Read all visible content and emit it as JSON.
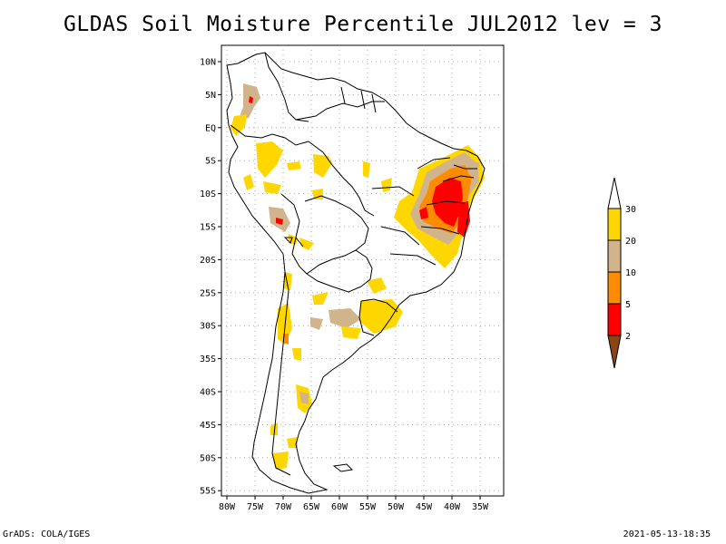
{
  "title": "GLDAS Soil Moisture Percentile JUL2012 lev = 3",
  "lat_labels": [
    "10N",
    "5N",
    "EQ",
    "5S",
    "10S",
    "15S",
    "20S",
    "25S",
    "30S",
    "35S",
    "40S",
    "45S",
    "50S",
    "55S"
  ],
  "lon_labels": [
    "80W",
    "75W",
    "70W",
    "65W",
    "60W",
    "55W",
    "50W",
    "45W",
    "40W",
    "35W"
  ],
  "colorbar": {
    "levels": [
      "30",
      "20",
      "10",
      "5",
      "2"
    ],
    "colors": {
      "above30": "#ffffff",
      "c20_30": "#ffd700",
      "c10_20": "#d2b48c",
      "c5_10": "#ff8c00",
      "c2_5": "#ff0000",
      "below2": "#8b4513"
    }
  },
  "footer": {
    "left": "GrADS: COLA/IGES",
    "right": "2021-05-13-18:35"
  }
}
